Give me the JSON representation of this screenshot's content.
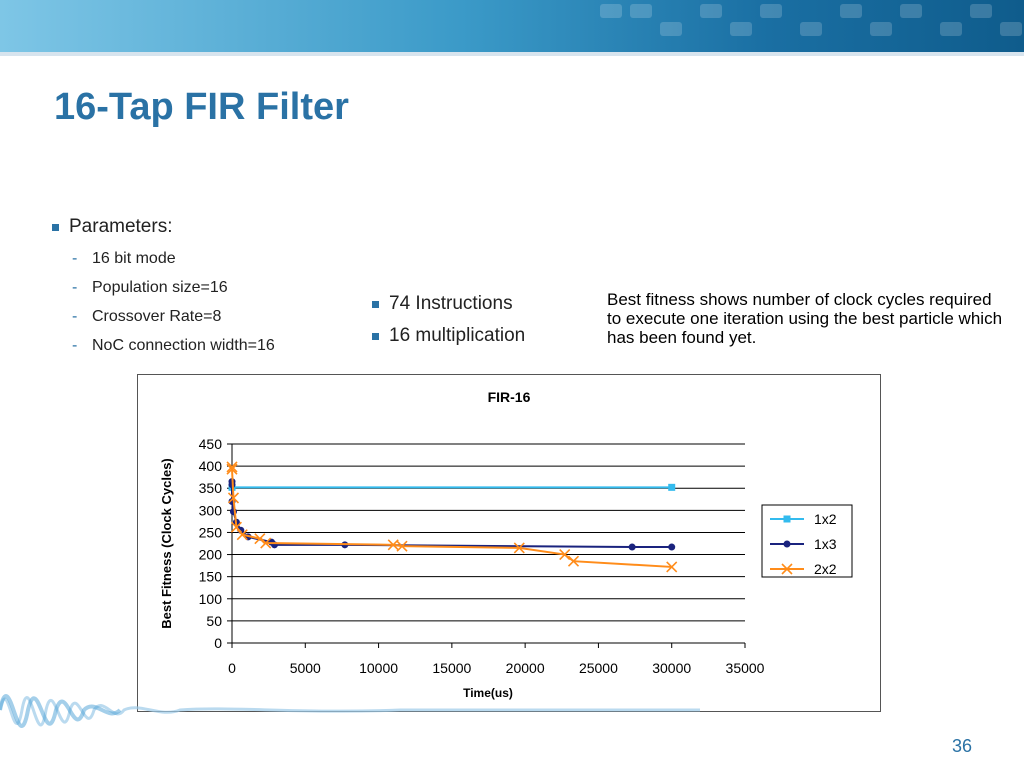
{
  "slide": {
    "title": "16-Tap FIR Filter",
    "page_number": "36",
    "parameters": {
      "heading": "Parameters:",
      "items": [
        "16 bit mode",
        "Population size=16",
        "Crossover Rate=8",
        "NoC connection width=16"
      ]
    },
    "middle_bullets": [
      "74 Instructions",
      "16 multiplication"
    ],
    "note": "Best fitness shows number of clock cycles required to execute one iteration using the best particle which has been found yet.",
    "colors": {
      "accent": "#2a72a5"
    }
  },
  "chart_data": {
    "type": "line",
    "title": "FIR-16",
    "xlabel": "Time(us)",
    "ylabel": "Best Fitness (Clock Cycles)",
    "xlim": [
      0,
      35000
    ],
    "ylim": [
      0,
      450
    ],
    "x_ticks": [
      "0",
      "5000",
      "10000",
      "15000",
      "20000",
      "25000",
      "30000",
      "35000"
    ],
    "y_ticks": [
      "0",
      "50",
      "100",
      "150",
      "200",
      "250",
      "300",
      "350",
      "400",
      "450"
    ],
    "grid": "horizontal",
    "legend_position": "right",
    "series": [
      {
        "name": "1x2",
        "color": "#33bbee",
        "marker": "square",
        "points": [
          [
            0,
            352
          ],
          [
            30000,
            352
          ]
        ]
      },
      {
        "name": "1x3",
        "color": "#1a237e",
        "marker": "circle",
        "points": [
          [
            0,
            365
          ],
          [
            0,
            358
          ],
          [
            0,
            320
          ],
          [
            100,
            297
          ],
          [
            300,
            273
          ],
          [
            600,
            255
          ],
          [
            1100,
            240
          ],
          [
            2700,
            228
          ],
          [
            2900,
            222
          ],
          [
            7700,
            222
          ],
          [
            27300,
            217
          ],
          [
            30000,
            217
          ]
        ]
      },
      {
        "name": "2x2",
        "color": "#ff8c1a",
        "marker": "x",
        "points": [
          [
            0,
            398
          ],
          [
            0,
            393
          ],
          [
            100,
            328
          ],
          [
            300,
            262
          ],
          [
            700,
            245
          ],
          [
            1900,
            236
          ],
          [
            2300,
            226
          ],
          [
            11000,
            222
          ],
          [
            11600,
            219
          ],
          [
            19600,
            215
          ],
          [
            22700,
            200
          ],
          [
            23300,
            185
          ],
          [
            30000,
            172
          ]
        ]
      }
    ]
  }
}
